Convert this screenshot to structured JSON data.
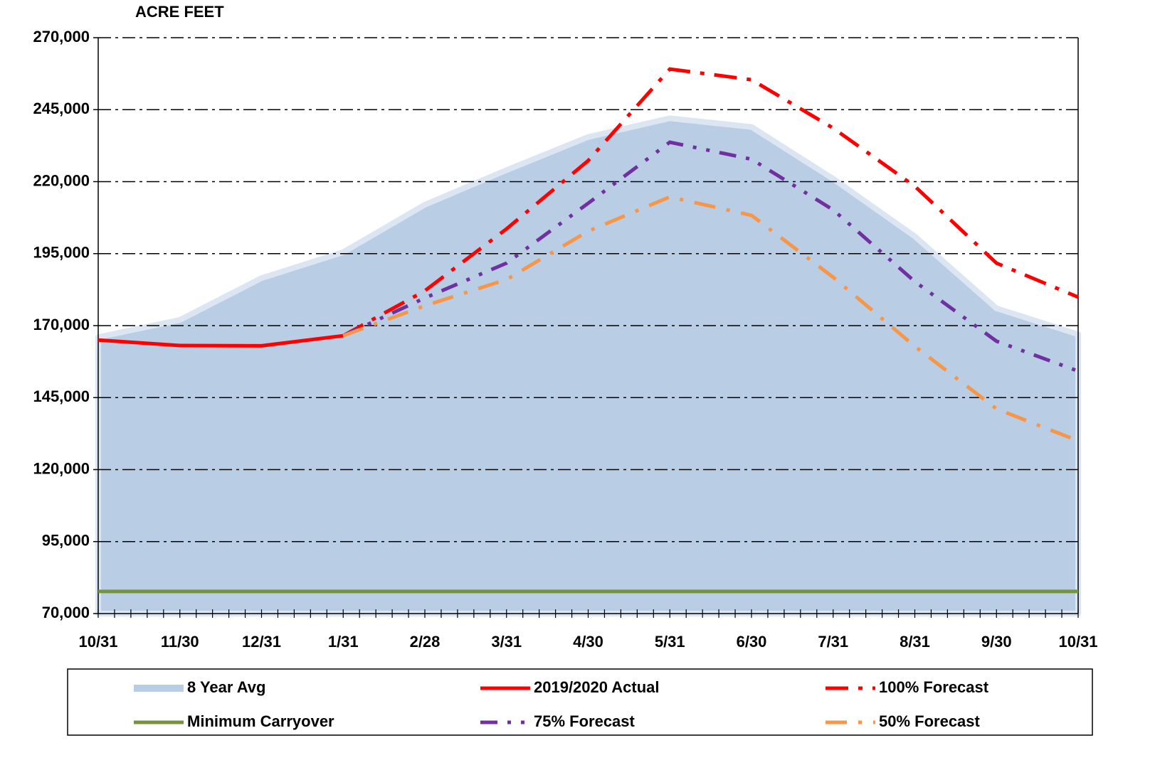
{
  "chart_data": {
    "type": "line",
    "y_label": "ACRE FEET",
    "categories": [
      "10/31",
      "11/30",
      "12/31",
      "1/31",
      "2/28",
      "3/31",
      "4/30",
      "5/31",
      "6/30",
      "7/31",
      "8/31",
      "9/30",
      "10/31"
    ],
    "ylim": [
      70000,
      270000
    ],
    "yticks": [
      {
        "value": 70000,
        "label": "70,000"
      },
      {
        "value": 95000,
        "label": "95,000"
      },
      {
        "value": 120000,
        "label": "120,000"
      },
      {
        "value": 145000,
        "label": "145,000"
      },
      {
        "value": 170000,
        "label": "170,000"
      },
      {
        "value": 195000,
        "label": "195,000"
      },
      {
        "value": 220000,
        "label": "220,000"
      },
      {
        "value": 245000,
        "label": "245,000"
      },
      {
        "value": 270000,
        "label": "270,000"
      }
    ],
    "grid": true,
    "series": [
      {
        "name": "8 Year Avg",
        "style": "area",
        "color": "#b9cde5",
        "values": [
          166000,
          172000,
          186500,
          195500,
          212000,
          224000,
          235500,
          242000,
          239000,
          221000,
          201000,
          176000,
          167000
        ]
      },
      {
        "name": "2019/2020 Actual",
        "style": "solid",
        "color": "#ff0000",
        "values": [
          165000,
          163100,
          163000,
          166500,
          null,
          null,
          null,
          null,
          null,
          null,
          null,
          null,
          null
        ]
      },
      {
        "name": "100% Forecast",
        "style": "long-dash-dot",
        "color": "#ff0000",
        "values": [
          null,
          null,
          null,
          166500,
          182100,
          203600,
          227300,
          259100,
          255400,
          238600,
          218400,
          191700,
          179900
        ]
      },
      {
        "name": "Minimum Carryover",
        "style": "solid",
        "color": "#77933c",
        "values": [
          77700,
          77700,
          77700,
          77700,
          77700,
          77700,
          77700,
          77700,
          77700,
          77700,
          77700,
          77700,
          77700
        ]
      },
      {
        "name": "75% Forecast",
        "style": "dash-dot-dot",
        "color": "#7030a0",
        "values": [
          null,
          null,
          null,
          166500,
          179600,
          191700,
          212500,
          233700,
          227800,
          210200,
          185300,
          164600,
          154200
        ]
      },
      {
        "name": "50% Forecast",
        "style": "dash-dot",
        "color": "#f79646",
        "values": [
          null,
          null,
          null,
          166500,
          176900,
          186000,
          202800,
          214700,
          208300,
          186800,
          162800,
          141100,
          130000
        ]
      }
    ]
  }
}
